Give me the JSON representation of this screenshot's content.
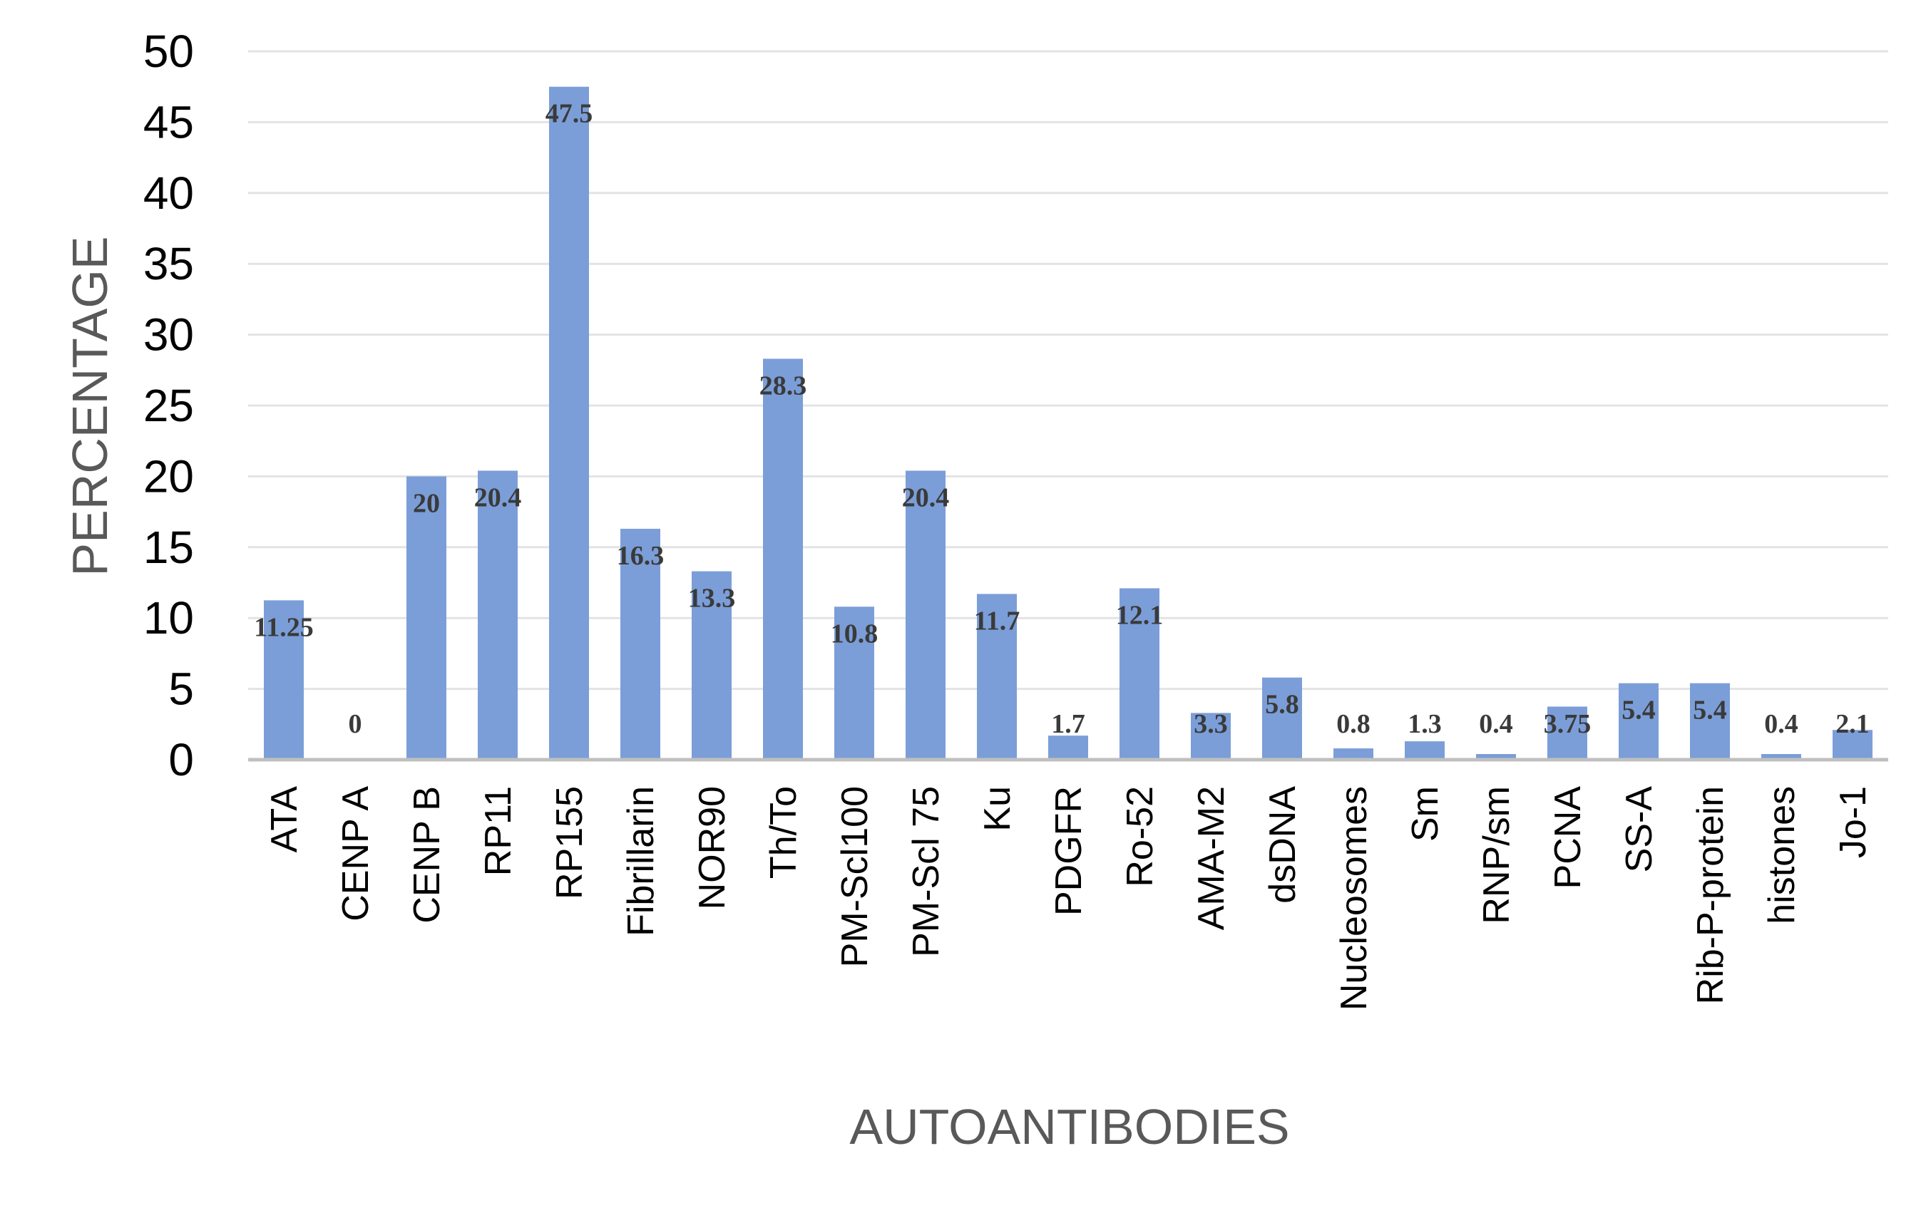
{
  "chart_data": {
    "type": "bar",
    "xlabel": "AUTOANTIBODIES",
    "ylabel": "PERCENTAGE",
    "ylim": [
      0,
      50
    ],
    "yticks": [
      0,
      5,
      10,
      15,
      20,
      25,
      30,
      35,
      40,
      45,
      50
    ],
    "grid": true,
    "legend": "none",
    "bar_color": "#7b9ed8",
    "categories": [
      "ATA",
      "CENP A",
      "CENP B",
      "RP11",
      "RP155",
      "Fibrillarin",
      "NOR90",
      "Th/To",
      "PM-Scl100",
      "PM-Scl 75",
      "Ku",
      "PDGFR",
      "Ro-52",
      "AMA-M2",
      "dsDNA",
      "Nucleosomes",
      "Sm",
      "RNP/sm",
      "PCNA",
      "SS-A",
      "Rib-P-protein",
      "histones",
      "Jo-1"
    ],
    "values": [
      11.25,
      0,
      20,
      20.4,
      47.5,
      16.3,
      13.3,
      28.3,
      10.8,
      20.4,
      11.7,
      1.7,
      12.1,
      3.3,
      5.8,
      0.8,
      1.3,
      0.4,
      3.75,
      5.4,
      5.4,
      0.4,
      2.1
    ],
    "labels": [
      "11.25",
      "0",
      "20",
      "20.4",
      "47.5",
      "16.3",
      "13.3",
      "28.3",
      "10.8",
      "20.4",
      "11.7",
      "1.7",
      "12.1",
      "3.3",
      "5.8",
      "0.8",
      "1.3",
      "0.4",
      "3.75",
      "5.4",
      "5.4",
      "0.4",
      "2.1"
    ]
  }
}
